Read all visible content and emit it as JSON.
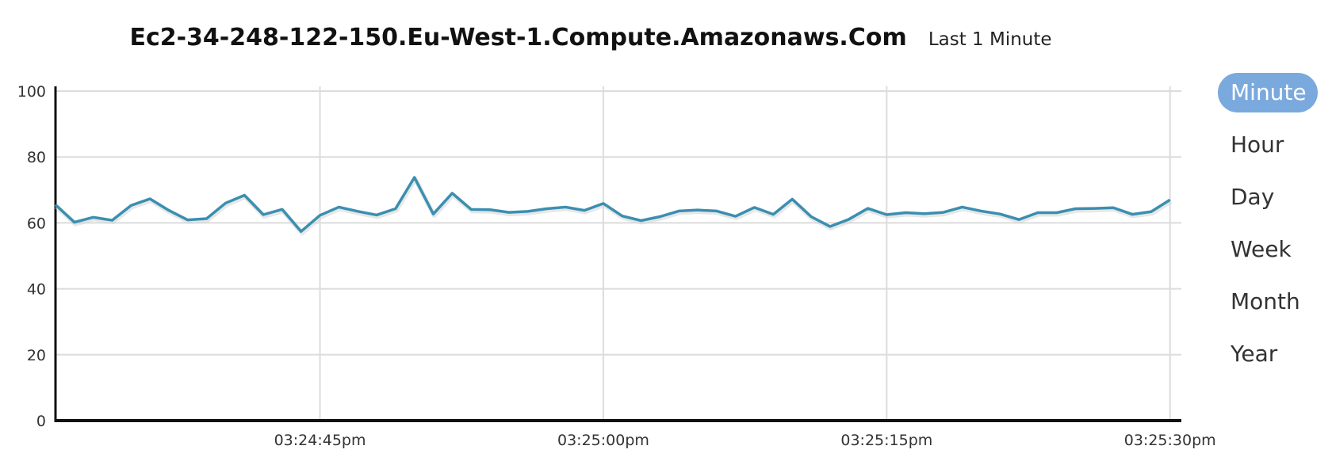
{
  "header": {
    "title": "Ec2-34-248-122-150.Eu-West-1.Compute.Amazonaws.Com",
    "subtitle": "Last 1 Minute"
  },
  "range_selector": {
    "active": "Minute",
    "options": [
      "Minute",
      "Hour",
      "Day",
      "Week",
      "Month",
      "Year"
    ]
  },
  "colors": {
    "line": "#3a8fb0",
    "active_button": "#7aa9dd",
    "grid": "#dcdcdc",
    "axis": "#111111"
  },
  "chart_data": {
    "type": "line",
    "title": "Ec2-34-248-122-150.Eu-West-1.Compute.Amazonaws.Com",
    "subtitle": "Last 1 Minute",
    "xlabel": "",
    "ylabel": "",
    "ylim": [
      0,
      100
    ],
    "yticks": [
      0,
      20,
      40,
      60,
      80,
      100
    ],
    "xlim_seconds_after_03_24_31pm": [
      0,
      59.6
    ],
    "xticks": [
      {
        "label": "03:24:45pm",
        "t": 14
      },
      {
        "label": "03:25:00pm",
        "t": 29
      },
      {
        "label": "03:25:15pm",
        "t": 44
      },
      {
        "label": "03:25:30pm",
        "t": 59
      }
    ],
    "grid": true,
    "series": [
      {
        "values": [
          65.5,
          60.2,
          61.7,
          60.8,
          65.3,
          67.3,
          63.8,
          60.9,
          61.3,
          66.0,
          68.4,
          62.5,
          64.1,
          57.4,
          62.3,
          64.8,
          63.5,
          62.4,
          64.3,
          73.8,
          62.7,
          69.0,
          64.1,
          64.0,
          63.2,
          63.5,
          64.3,
          64.8,
          63.8,
          65.9,
          62.1,
          60.7,
          61.9,
          63.6,
          63.9,
          63.6,
          62.0,
          64.7,
          62.6,
          67.2,
          61.9,
          58.9,
          61.1,
          64.4,
          62.5,
          63.1,
          62.8,
          63.2,
          64.8,
          63.6,
          62.7,
          61.0,
          63.1,
          63.1,
          64.3,
          64.4,
          64.6,
          62.6,
          63.4,
          67.0
        ]
      }
    ]
  }
}
